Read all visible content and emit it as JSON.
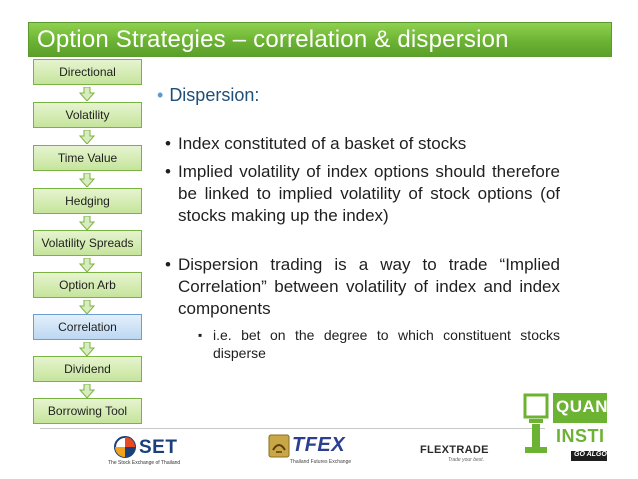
{
  "title": "Option Strategies – correlation & dispersion",
  "flow": [
    {
      "label": "Directional"
    },
    {
      "label": "Volatility"
    },
    {
      "label": "Time Value"
    },
    {
      "label": "Hedging"
    },
    {
      "label": "Volatility Spreads"
    },
    {
      "label": "Option Arb"
    },
    {
      "label": "Correlation"
    },
    {
      "label": "Dividend"
    },
    {
      "label": "Borrowing Tool"
    }
  ],
  "heading": "Dispersion:",
  "bullets": [
    "Index constituted of a basket of stocks",
    "Implied volatility of index options should therefore be linked to implied volatility of stock options (of stocks making up the index)",
    "Dispersion trading is a way to trade “Implied Correlation” between volatility of index and index components"
  ],
  "sub_bullet": "i.e. bet on the degree to which constituent stocks disperse",
  "logos": {
    "set_name": "SET",
    "set_tag": "The Stock Exchange of Thailand",
    "tfex_name": "TFEX",
    "tfex_tag": "Thailand Futures Exchange",
    "flextrade_name": "FLEXTRADE",
    "flextrade_tag": "Trade your best.",
    "quantinsti_1": "QUANT",
    "quantinsti_2": "INSTI",
    "quantinsti_tag": "GO ALGO"
  },
  "colors": {
    "title_bar": "#6cb333",
    "flow_box": "#c6e49c",
    "active_box": "#bcd8f2",
    "heading": "#1f4e79"
  }
}
